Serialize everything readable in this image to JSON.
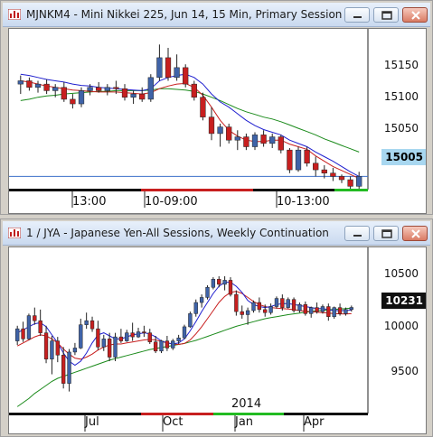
{
  "window1": {
    "title": "MJNKM4 - Mini Nikkei 225, Jun 14, 15 Min, Primary Session",
    "y_ticks": [
      "15150",
      "15100",
      "15050"
    ],
    "last_price": "15005",
    "x_labels": [
      "13:00",
      "10-09:00",
      "10-13:00"
    ]
  },
  "window2": {
    "title": "1 / JYA - Japanese Yen-All Sessions, Weekly Continuation",
    "y_ticks": [
      "10500",
      "10000",
      "9500"
    ],
    "last_price": "10231",
    "x_labels": [
      "Jul",
      "Oct",
      "Jan",
      "Apr"
    ],
    "year_label": "2014"
  },
  "controls": {
    "minimize_icon": "minimize-icon",
    "restore_icon": "restore-icon",
    "close_icon": "close-icon",
    "chart_icon": "chart-icon"
  },
  "colors": {
    "up": "#3f63a8",
    "down": "#c71f1f",
    "ma_fast": "#1f1fcf",
    "ma_mid": "#c81e1e",
    "ma_slow": "#1a8a1a",
    "last_price_box_1": "#a8d7f0",
    "last_price_box_2": "#111111",
    "hline": "#3b6fc9"
  },
  "chart_data": [
    {
      "type": "candlestick",
      "title": "MJNKM4 - Mini Nikkei 225, Jun 14, 15 Min, Primary Session",
      "ylim": [
        14985,
        15215
      ],
      "y_ticks": [
        15150,
        15100,
        15050
      ],
      "x_labels": [
        "13:00",
        "10-09:00",
        "10-13:00"
      ],
      "last_price": 15005,
      "series": [
        {
          "name": "candles",
          "values": [
            [
              15145,
              15158,
              15130,
              15150
            ],
            [
              15150,
              15155,
              15135,
              15140
            ],
            [
              15140,
              15150,
              15132,
              15145
            ],
            [
              15145,
              15152,
              15130,
              15135
            ],
            [
              15135,
              15145,
              15125,
              15140
            ],
            [
              15140,
              15148,
              15118,
              15122
            ],
            [
              15122,
              15130,
              15108,
              15115
            ],
            [
              15115,
              15140,
              15110,
              15135
            ],
            [
              15135,
              15145,
              15128,
              15140
            ],
            [
              15140,
              15148,
              15132,
              15135
            ],
            [
              15135,
              15145,
              15128,
              15140
            ],
            [
              15140,
              15150,
              15130,
              15138
            ],
            [
              15138,
              15145,
              15120,
              15125
            ],
            [
              15125,
              15135,
              15115,
              15130
            ],
            [
              15130,
              15140,
              15118,
              15122
            ],
            [
              15122,
              15160,
              15118,
              15155
            ],
            [
              15155,
              15205,
              15150,
              15185
            ],
            [
              15185,
              15200,
              15150,
              15155
            ],
            [
              15155,
              15190,
              15150,
              15170
            ],
            [
              15170,
              15175,
              15140,
              15145
            ],
            [
              15145,
              15150,
              15120,
              15125
            ],
            [
              15125,
              15132,
              15090,
              15095
            ],
            [
              15095,
              15110,
              15060,
              15070
            ],
            [
              15070,
              15085,
              15050,
              15080
            ],
            [
              15080,
              15085,
              15055,
              15060
            ],
            [
              15060,
              15075,
              15045,
              15065
            ],
            [
              15065,
              15070,
              15045,
              15050
            ],
            [
              15050,
              15072,
              15045,
              15068
            ],
            [
              15068,
              15075,
              15050,
              15055
            ],
            [
              15055,
              15070,
              15048,
              15065
            ],
            [
              15065,
              15068,
              15040,
              15045
            ],
            [
              15045,
              15048,
              15010,
              15015
            ],
            [
              15015,
              15050,
              15012,
              15045
            ],
            [
              15045,
              15050,
              15020,
              15025
            ],
            [
              15025,
              15035,
              15005,
              15015
            ],
            [
              15015,
              15022,
              15002,
              15010
            ],
            [
              15010,
              15018,
              14998,
              15005
            ],
            [
              15005,
              15008,
              14995,
              15000
            ],
            [
              15000,
              15005,
              14985,
              14990
            ],
            [
              14990,
              15012,
              14985,
              15005
            ]
          ]
        },
        {
          "name": "ma_fast",
          "values": [
            15160,
            15158,
            15155,
            15152,
            15150,
            15148,
            15145,
            15143,
            15142,
            15140,
            15139,
            15138,
            15137,
            15136,
            15135,
            15138,
            15150,
            15155,
            15158,
            15160,
            15155,
            15145,
            15130,
            15118,
            15110,
            15100,
            15090,
            15082,
            15076,
            15072,
            15068,
            15060,
            15055,
            15050,
            15042,
            15035,
            15028,
            15020,
            15012,
            15005
          ]
        },
        {
          "name": "ma_mid",
          "values": [
            15150,
            15148,
            15145,
            15142,
            15140,
            15138,
            15136,
            15135,
            15134,
            15133,
            15133,
            15133,
            15132,
            15131,
            15130,
            15132,
            15138,
            15142,
            15145,
            15146,
            15140,
            15128,
            15110,
            15090,
            15075,
            15066,
            15060,
            15058,
            15058,
            15060,
            15060,
            15054,
            15050,
            15046,
            15036,
            15028,
            15020,
            15014,
            15008,
            15002
          ]
        },
        {
          "name": "ma_slow",
          "values": [
            15120,
            15122,
            15125,
            15127,
            15128,
            15130,
            15131,
            15132,
            15133,
            15134,
            15134,
            15135,
            15135,
            15135,
            15135,
            15136,
            15138,
            15138,
            15137,
            15136,
            15134,
            15130,
            15125,
            15120,
            15114,
            15108,
            15103,
            15099,
            15095,
            15092,
            15088,
            15083,
            15078,
            15073,
            15068,
            15062,
            15057,
            15052,
            15047,
            15042
          ]
        }
      ]
    },
    {
      "type": "candlestick",
      "title": "1 / JYA - Japanese Yen-All Sessions, Weekly Continuation",
      "ylim": [
        9200,
        10700
      ],
      "y_ticks": [
        10500,
        10000,
        9500
      ],
      "x_labels": [
        "Jul",
        "Oct",
        "Jan",
        "Apr"
      ],
      "year_label": "2014",
      "last_price": 10231,
      "series": [
        {
          "name": "candles",
          "values": [
            [
              9900,
              10050,
              9860,
              10020
            ],
            [
              10020,
              10090,
              9890,
              9920
            ],
            [
              9920,
              10170,
              9910,
              10150
            ],
            [
              10150,
              10230,
              10060,
              10100
            ],
            [
              10100,
              10210,
              9950,
              9980
            ],
            [
              9980,
              10050,
              9680,
              9720
            ],
            [
              9720,
              9950,
              9570,
              9900
            ],
            [
              9900,
              9940,
              9690,
              9760
            ],
            [
              9760,
              9840,
              9430,
              9480
            ],
            [
              9480,
              9820,
              9400,
              9790
            ],
            [
              9790,
              9880,
              9760,
              9830
            ],
            [
              9830,
              10120,
              9820,
              10060
            ],
            [
              10060,
              10180,
              10020,
              10100
            ],
            [
              10100,
              10140,
              9990,
              10020
            ],
            [
              10020,
              10100,
              9810,
              9840
            ],
            [
              9840,
              9960,
              9800,
              9920
            ],
            [
              9920,
              9980,
              9700,
              9740
            ],
            [
              9740,
              9980,
              9700,
              9940
            ],
            [
              9940,
              10020,
              9880,
              9900
            ],
            [
              9900,
              10010,
              9890,
              9980
            ],
            [
              9980,
              10080,
              9900,
              9940
            ],
            [
              9940,
              10030,
              9930,
              9990
            ],
            [
              9990,
              10050,
              9940,
              9980
            ],
            [
              9980,
              10020,
              9870,
              9890
            ],
            [
              9890,
              9950,
              9780,
              9800
            ],
            [
              9800,
              9910,
              9780,
              9900
            ],
            [
              9900,
              9950,
              9800,
              9830
            ],
            [
              9830,
              9920,
              9810,
              9900
            ],
            [
              9900,
              9960,
              9870,
              9930
            ],
            [
              9930,
              10060,
              9920,
              10040
            ],
            [
              10040,
              10190,
              10030,
              10170
            ],
            [
              10170,
              10310,
              10140,
              10280
            ],
            [
              10280,
              10360,
              10230,
              10330
            ],
            [
              10330,
              10450,
              10310,
              10430
            ],
            [
              10430,
              10530,
              10410,
              10510
            ],
            [
              10510,
              10540,
              10430,
              10460
            ],
            [
              10460,
              10540,
              10400,
              10500
            ],
            [
              10500,
              10530,
              10340,
              10360
            ],
            [
              10360,
              10400,
              10150,
              10190
            ],
            [
              10190,
              10250,
              10120,
              10160
            ],
            [
              10160,
              10230,
              10060,
              10200
            ],
            [
              10200,
              10300,
              10180,
              10280
            ],
            [
              10280,
              10330,
              10180,
              10210
            ],
            [
              10210,
              10260,
              10140,
              10180
            ],
            [
              10180,
              10270,
              10160,
              10240
            ],
            [
              10240,
              10340,
              10220,
              10320
            ],
            [
              10320,
              10360,
              10200,
              10230
            ],
            [
              10230,
              10330,
              10220,
              10310
            ],
            [
              10310,
              10330,
              10180,
              10200
            ],
            [
              10200,
              10280,
              10180,
              10260
            ],
            [
              10260,
              10290,
              10150,
              10170
            ],
            [
              10170,
              10240,
              10130,
              10230
            ],
            [
              10230,
              10280,
              10170,
              10190
            ],
            [
              10190,
              10260,
              10170,
              10240
            ],
            [
              10240,
              10270,
              10100,
              10140
            ],
            [
              10140,
              10240,
              10120,
              10230
            ],
            [
              10230,
              10270,
              10150,
              10170
            ],
            [
              10170,
              10230,
              10150,
              10210
            ],
            [
              10210,
              10250,
              10190,
              10231
            ]
          ]
        },
        {
          "name": "ma_fast",
          "values": [
            9980,
            10010,
            10040,
            10070,
            10080,
            10040,
            9960,
            9880,
            9780,
            9700,
            9660,
            9700,
            9780,
            9880,
            9960,
            9980,
            9950,
            9920,
            9920,
            9940,
            9960,
            9970,
            9980,
            9970,
            9940,
            9900,
            9880,
            9870,
            9880,
            9920,
            10000,
            10090,
            10190,
            10280,
            10370,
            10440,
            10480,
            10480,
            10440,
            10380,
            10300,
            10260,
            10240,
            10230,
            10240,
            10260,
            10270,
            10270,
            10260,
            10250,
            10240,
            10230,
            10220,
            10220,
            10210,
            10200,
            10200,
            10200,
            10205
          ]
        },
        {
          "name": "ma_mid",
          "values": [
            9850,
            9880,
            9910,
            9940,
            9960,
            9950,
            9920,
            9880,
            9820,
            9770,
            9730,
            9720,
            9740,
            9770,
            9810,
            9840,
            9860,
            9870,
            9870,
            9880,
            9890,
            9900,
            9910,
            9915,
            9910,
            9895,
            9880,
            9870,
            9865,
            9875,
            9910,
            9970,
            10040,
            10120,
            10200,
            10280,
            10340,
            10380,
            10390,
            10370,
            10330,
            10290,
            10260,
            10240,
            10230,
            10225,
            10220,
            10215,
            10210,
            10200,
            10195,
            10190,
            10185,
            10180,
            10175,
            10170,
            10168,
            10166,
            10170
          ]
        },
        {
          "name": "ma_slow",
          "values": [
            9250,
            9290,
            9330,
            9380,
            9420,
            9460,
            9500,
            9530,
            9550,
            9570,
            9590,
            9610,
            9630,
            9650,
            9670,
            9690,
            9710,
            9725,
            9740,
            9755,
            9770,
            9785,
            9800,
            9815,
            9825,
            9835,
            9845,
            9855,
            9865,
            9875,
            9890,
            9905,
            9925,
            9945,
            9965,
            9985,
            10005,
            10025,
            10045,
            10060,
            10075,
            10090,
            10105,
            10120,
            10130,
            10140,
            10150,
            10160,
            10168,
            10176,
            10184,
            10190,
            10196,
            10202,
            10208,
            10212,
            10216,
            10220,
            10224
          ]
        }
      ]
    }
  ]
}
